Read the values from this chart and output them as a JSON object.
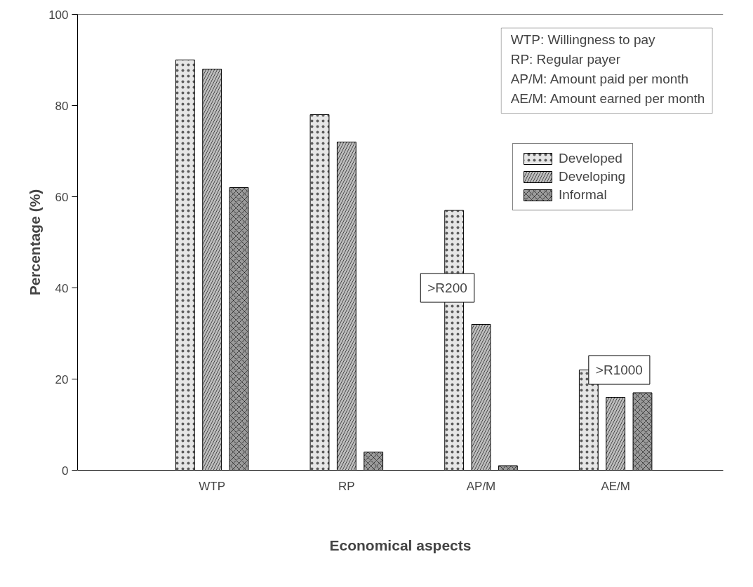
{
  "chart_data": {
    "type": "bar",
    "xlabel": "Economical aspects",
    "ylabel": "Percentage (%)",
    "categories": [
      "WTP",
      "RP",
      "AP/M",
      "AE/M"
    ],
    "series": [
      {
        "name": "Developed",
        "color": "#e6e6e6",
        "values": [
          90,
          78,
          57,
          22
        ]
      },
      {
        "name": "Developing",
        "color": "#bdbdbd",
        "values": [
          88,
          72,
          32,
          16
        ]
      },
      {
        "name": "Informal",
        "color": "#9a9a9a",
        "values": [
          62,
          4,
          1,
          17
        ]
      }
    ],
    "ylim": [
      0,
      100
    ],
    "yticks": [
      0,
      20,
      40,
      60,
      80,
      100
    ],
    "grid": false,
    "legend": "right",
    "annotations": [
      "WTP:   Willingness to pay",
      "RP:      Regular payer",
      "AP/M:  Amount paid per month",
      "AE/M:  Amount earned per month",
      ">R200",
      ">R1000"
    ]
  }
}
